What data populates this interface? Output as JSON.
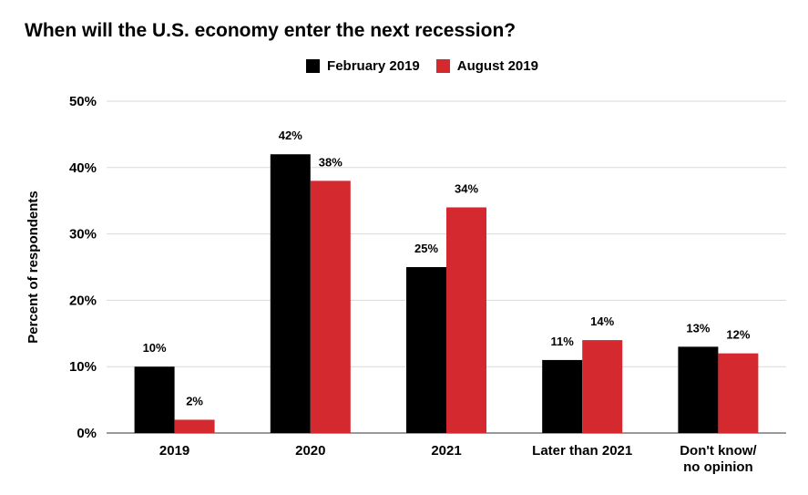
{
  "chart_data": {
    "type": "bar",
    "title": "When will the U.S. economy enter the next recession?",
    "xlabel": "",
    "ylabel": "Percent of respondents",
    "categories": [
      [
        "2019"
      ],
      [
        "2020"
      ],
      [
        "2021"
      ],
      [
        "Later than 2021"
      ],
      [
        "Don't know/",
        "no opinion"
      ]
    ],
    "series": [
      {
        "name": "February 2019",
        "color": "#000000",
        "values": [
          10,
          42,
          25,
          11,
          13
        ],
        "labels": [
          "10%",
          "42%",
          "25%",
          "11%",
          "13%"
        ]
      },
      {
        "name": "August 2019",
        "color": "#d42a2f",
        "values": [
          2,
          38,
          34,
          14,
          12
        ],
        "labels": [
          "2%",
          "38%",
          "34%",
          "14%",
          "12%"
        ]
      }
    ],
    "ylim": [
      0,
      50
    ],
    "yticks": [
      0,
      10,
      20,
      30,
      40,
      50
    ],
    "ytick_labels": [
      "0%",
      "10%",
      "20%",
      "30%",
      "40%",
      "50%"
    ],
    "grid": true,
    "legend_position": "top"
  }
}
